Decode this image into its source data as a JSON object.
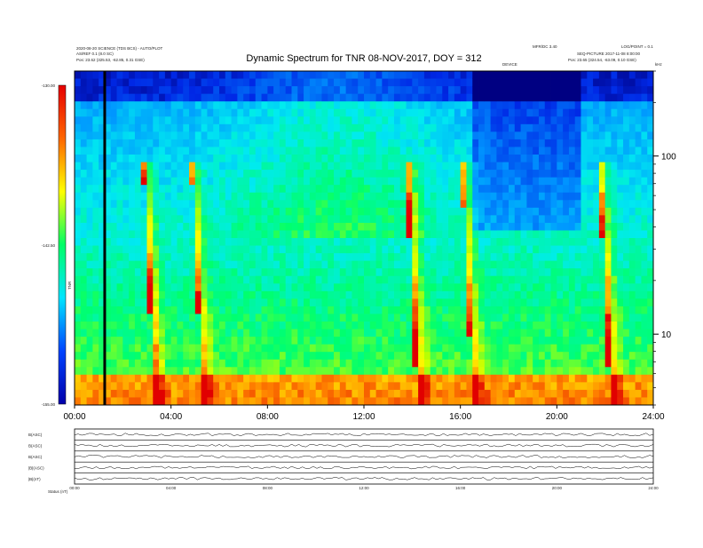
{
  "header": {
    "left_line1": "2020-08-20 SCIENCE (TDS BCS) - AUTO/PLOT",
    "left_line2": "AS/REF 0.1 (8.0 SC)",
    "left_line3": "Pos:   23.62 (325.53, -62.85, 0.31 GSE)",
    "right_line1": "MFR/DC 3.40",
    "right_line2": "LOG/POINT = 0.1",
    "right_line3": "SEQ-PICTURE 2017-11-08 8:00:00",
    "right_line4": "Pos:   23.65 (324.54, -63.09, 0.10 GSE)",
    "center_small": "DEVICE",
    "corner_small": "kHz"
  },
  "chart_data": {
    "type": "heatmap",
    "title": "Dynamic Spectrum for TNR 08-NOV-2017, DOY = 312",
    "x": {
      "unit": "UT hours",
      "range": [
        0,
        24
      ],
      "ticks": [
        0,
        4,
        8,
        12,
        16,
        20,
        24
      ],
      "tick_labels": [
        "00:00",
        "04:00",
        "08:00",
        "12:00",
        "16:00",
        "20:00",
        "24:00"
      ]
    },
    "y": {
      "scale": "log",
      "unit": "kHz",
      "range": [
        4,
        300
      ],
      "ticks": [
        10,
        100
      ],
      "tick_labels": [
        "10",
        "100"
      ]
    },
    "colorbar": {
      "label": "TNR",
      "range": [
        -155.0,
        -130.0
      ],
      "tick_values": [
        -130.0,
        -142.5,
        -155.0
      ],
      "tick_labels": [
        "-130.00",
        "-142.50",
        "-155.00"
      ],
      "colors": [
        "#0000aa",
        "#0044ff",
        "#00e5ff",
        "#00ff66",
        "#ffff00",
        "#ff6600",
        "#e60000"
      ]
    },
    "features": {
      "type_iii_bursts_hours": [
        2.7,
        4.7,
        13.6,
        15.9,
        21.6
      ],
      "data_gap_hour": 1.25,
      "background_levels_db": [
        -140.5,
        -141.5,
        -148.5,
        -151.0
      ]
    },
    "lower_panels": {
      "labels": [
        "B(ASC)",
        "B(ASC)",
        "B(ASC)",
        "|B|(ASC)",
        "|B|(nT)"
      ],
      "tick_labels": [
        "00:00",
        "04:00",
        "08:00",
        "12:00",
        "16:00",
        "20:00",
        "24:00"
      ],
      "footer_label": "Status   (nT)"
    }
  }
}
